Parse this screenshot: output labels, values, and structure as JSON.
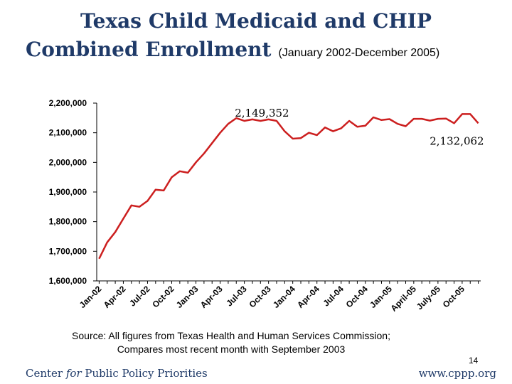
{
  "title": {
    "line1": "Texas Child Medicaid and CHIP",
    "line2": "Combined Enrollment",
    "subtitle": "(January 2002-December 2005)"
  },
  "footer": {
    "source_line1": "Source: All figures from Texas Health and Human Services Commission;",
    "source_line2": "Compares most recent month with September 2003",
    "page_number": "14",
    "org_before": "Center ",
    "org_italic": "for",
    "org_after": " Public Policy Priorities",
    "url": "www.cppp.org"
  },
  "colors": {
    "line": "#cc1f1f",
    "title": "#1f3a68"
  },
  "chart_data": {
    "type": "line",
    "title": "Texas Child Medicaid and CHIP Combined Enrollment",
    "xlabel": "",
    "ylabel": "",
    "ylim": [
      1600000,
      2200000
    ],
    "yticks": [
      1600000,
      1700000,
      1800000,
      1900000,
      2000000,
      2100000,
      2200000
    ],
    "ytick_labels": [
      "1,600,000",
      "1,700,000",
      "1,800,000",
      "1,900,000",
      "2,000,000",
      "2,100,000",
      "2,200,000"
    ],
    "grid": false,
    "legend": "none",
    "x": [
      "Jan-02",
      "Feb-02",
      "Mar-02",
      "Apr-02",
      "May-02",
      "Jun-02",
      "Jul-02",
      "Aug-02",
      "Sep-02",
      "Oct-02",
      "Nov-02",
      "Dec-02",
      "Jan-03",
      "Feb-03",
      "Mar-03",
      "Apr-03",
      "May-03",
      "Jun-03",
      "Jul-03",
      "Aug-03",
      "Sep-03",
      "Oct-03",
      "Nov-03",
      "Dec-03",
      "Jan-04",
      "Feb-04",
      "Mar-04",
      "Apr-04",
      "May-04",
      "Jun-04",
      "Jul-04",
      "Aug-04",
      "Sep-04",
      "Oct-04",
      "Nov-04",
      "Dec-04",
      "Jan-05",
      "Feb-05",
      "Mar-05",
      "Apr-05",
      "May-05",
      "Jun-05",
      "Jul-05",
      "Aug-05",
      "Sep-05",
      "Oct-05",
      "Nov-05",
      "Dec-05"
    ],
    "xtick_labels": [
      "Jan-02",
      "Apr-02",
      "Jul-02",
      "Oct-02",
      "Jan-03",
      "Apr-03",
      "Jul-03",
      "Oct-03",
      "Jan-04",
      "Apr-04",
      "Jul-04",
      "Oct-04",
      "Jan-05",
      "April-05",
      "July-05",
      "Oct-05"
    ],
    "xtick_indices": [
      0,
      3,
      6,
      9,
      12,
      15,
      18,
      21,
      24,
      27,
      30,
      33,
      36,
      39,
      42,
      45
    ],
    "series": [
      {
        "values": [
          1675000,
          1730000,
          1765000,
          1810000,
          1855000,
          1850000,
          1870000,
          1908000,
          1905000,
          1950000,
          1970000,
          1965000,
          2000000,
          2030000,
          2065000,
          2100000,
          2130000,
          2149352,
          2140000,
          2145000,
          2140000,
          2145000,
          2140000,
          2105000,
          2080000,
          2082000,
          2100000,
          2092000,
          2118000,
          2105000,
          2115000,
          2140000,
          2120000,
          2124000,
          2152000,
          2143000,
          2146000,
          2130000,
          2122000,
          2147000,
          2147000,
          2141000,
          2147000,
          2148000,
          2132000,
          2163000,
          2163000,
          2132062
        ]
      }
    ],
    "annotations": [
      {
        "text": "2,149,352",
        "index": 17
      },
      {
        "text": "2,132,062",
        "index": 47
      }
    ]
  }
}
